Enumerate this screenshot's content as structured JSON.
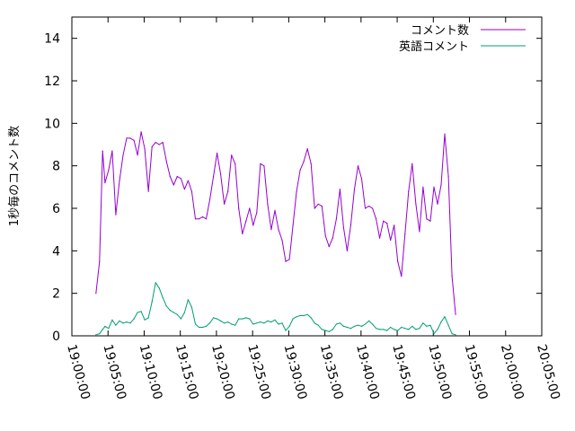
{
  "chart_data": {
    "type": "line",
    "title": "",
    "xlabel": "",
    "ylabel": "1秒毎のコメント数",
    "x_ticks": [
      "19:00:00",
      "19:05:00",
      "19:10:00",
      "19:15:00",
      "19:20:00",
      "19:25:00",
      "19:30:00",
      "19:35:00",
      "19:40:00",
      "19:45:00",
      "19:50:00",
      "19:55:00",
      "20:00:00",
      "20:05:00"
    ],
    "y_ticks": [
      "0",
      "2",
      "4",
      "6",
      "8",
      "10",
      "12",
      "14"
    ],
    "xlim": [
      "19:00:00",
      "20:05:00"
    ],
    "ylim": [
      0,
      15
    ],
    "grid": false,
    "legend_position": "top-right",
    "series": [
      {
        "name": "コメント数",
        "color": "#9400d3",
        "points": [
          [
            "19:03:20",
            2.0
          ],
          [
            "19:03:50",
            3.5
          ],
          [
            "19:04:15",
            8.7
          ],
          [
            "19:04:35",
            7.2
          ],
          [
            "19:05:05",
            7.8
          ],
          [
            "19:05:35",
            8.7
          ],
          [
            "19:06:05",
            5.7
          ],
          [
            "19:06:35",
            7.3
          ],
          [
            "19:07:05",
            8.5
          ],
          [
            "19:07:35",
            9.3
          ],
          [
            "19:08:05",
            9.3
          ],
          [
            "19:08:35",
            9.2
          ],
          [
            "19:09:05",
            8.5
          ],
          [
            "19:09:35",
            9.6
          ],
          [
            "19:10:05",
            8.8
          ],
          [
            "19:10:35",
            6.8
          ],
          [
            "19:11:05",
            8.9
          ],
          [
            "19:11:35",
            9.1
          ],
          [
            "19:12:05",
            9.0
          ],
          [
            "19:12:35",
            9.1
          ],
          [
            "19:13:05",
            8.2
          ],
          [
            "19:13:35",
            7.5
          ],
          [
            "19:14:05",
            7.1
          ],
          [
            "19:14:35",
            7.5
          ],
          [
            "19:15:05",
            7.4
          ],
          [
            "19:15:35",
            6.9
          ],
          [
            "19:16:05",
            7.3
          ],
          [
            "19:16:35",
            6.8
          ],
          [
            "19:17:05",
            5.5
          ],
          [
            "19:17:35",
            5.5
          ],
          [
            "19:18:05",
            5.6
          ],
          [
            "19:18:35",
            5.5
          ],
          [
            "19:19:05",
            6.4
          ],
          [
            "19:19:35",
            7.5
          ],
          [
            "19:20:05",
            8.6
          ],
          [
            "19:20:35",
            7.6
          ],
          [
            "19:21:05",
            6.2
          ],
          [
            "19:21:35",
            6.8
          ],
          [
            "19:22:05",
            8.5
          ],
          [
            "19:22:35",
            8.1
          ],
          [
            "19:23:05",
            6.0
          ],
          [
            "19:23:35",
            4.8
          ],
          [
            "19:24:05",
            5.4
          ],
          [
            "19:24:35",
            6.0
          ],
          [
            "19:25:05",
            5.2
          ],
          [
            "19:25:35",
            5.8
          ],
          [
            "19:26:05",
            8.1
          ],
          [
            "19:26:35",
            8.0
          ],
          [
            "19:27:05",
            6.2
          ],
          [
            "19:27:35",
            5.0
          ],
          [
            "19:28:05",
            5.9
          ],
          [
            "19:28:35",
            5.0
          ],
          [
            "19:29:05",
            4.5
          ],
          [
            "19:29:35",
            3.5
          ],
          [
            "19:30:05",
            3.6
          ],
          [
            "19:30:35",
            5.2
          ],
          [
            "19:31:05",
            6.8
          ],
          [
            "19:31:35",
            7.8
          ],
          [
            "19:32:05",
            8.2
          ],
          [
            "19:32:35",
            8.8
          ],
          [
            "19:33:05",
            8.1
          ],
          [
            "19:33:35",
            6.0
          ],
          [
            "19:34:05",
            6.2
          ],
          [
            "19:34:35",
            6.1
          ],
          [
            "19:35:05",
            4.7
          ],
          [
            "19:35:35",
            4.2
          ],
          [
            "19:36:05",
            4.6
          ],
          [
            "19:36:35",
            5.5
          ],
          [
            "19:37:05",
            6.9
          ],
          [
            "19:37:35",
            5.1
          ],
          [
            "19:38:05",
            4.0
          ],
          [
            "19:38:35",
            5.2
          ],
          [
            "19:39:05",
            6.9
          ],
          [
            "19:39:35",
            8.0
          ],
          [
            "19:40:05",
            7.4
          ],
          [
            "19:40:35",
            6.0
          ],
          [
            "19:41:05",
            6.1
          ],
          [
            "19:41:35",
            6.0
          ],
          [
            "19:42:05",
            5.5
          ],
          [
            "19:42:35",
            4.6
          ],
          [
            "19:43:05",
            5.4
          ],
          [
            "19:43:35",
            5.3
          ],
          [
            "19:44:05",
            4.5
          ],
          [
            "19:44:35",
            5.2
          ],
          [
            "19:45:05",
            3.5
          ],
          [
            "19:45:35",
            2.8
          ],
          [
            "19:46:05",
            4.8
          ],
          [
            "19:46:35",
            6.8
          ],
          [
            "19:47:05",
            8.1
          ],
          [
            "19:47:35",
            6.2
          ],
          [
            "19:48:05",
            4.9
          ],
          [
            "19:48:35",
            7.0
          ],
          [
            "19:49:05",
            5.5
          ],
          [
            "19:49:35",
            5.4
          ],
          [
            "19:50:05",
            7.0
          ],
          [
            "19:50:35",
            6.2
          ],
          [
            "19:51:05",
            7.1
          ],
          [
            "19:51:35",
            9.5
          ],
          [
            "19:52:05",
            7.5
          ],
          [
            "19:52:35",
            2.8
          ],
          [
            "19:53:05",
            1.0
          ]
        ]
      },
      {
        "name": "英語コメント",
        "color": "#009e73",
        "points": [
          [
            "19:03:20",
            0.05
          ],
          [
            "19:03:50",
            0.1
          ],
          [
            "19:04:15",
            0.3
          ],
          [
            "19:04:35",
            0.45
          ],
          [
            "19:05:05",
            0.35
          ],
          [
            "19:05:35",
            0.75
          ],
          [
            "19:06:05",
            0.5
          ],
          [
            "19:06:35",
            0.7
          ],
          [
            "19:07:05",
            0.6
          ],
          [
            "19:07:35",
            0.65
          ],
          [
            "19:08:05",
            0.6
          ],
          [
            "19:08:35",
            0.8
          ],
          [
            "19:09:05",
            1.1
          ],
          [
            "19:09:35",
            1.15
          ],
          [
            "19:10:05",
            0.75
          ],
          [
            "19:10:35",
            0.85
          ],
          [
            "19:11:05",
            1.6
          ],
          [
            "19:11:35",
            2.5
          ],
          [
            "19:12:05",
            2.25
          ],
          [
            "19:12:35",
            1.8
          ],
          [
            "19:13:05",
            1.4
          ],
          [
            "19:13:35",
            1.2
          ],
          [
            "19:14:05",
            1.1
          ],
          [
            "19:14:35",
            1.0
          ],
          [
            "19:15:05",
            0.8
          ],
          [
            "19:15:35",
            1.1
          ],
          [
            "19:16:05",
            1.7
          ],
          [
            "19:16:35",
            1.35
          ],
          [
            "19:17:05",
            0.55
          ],
          [
            "19:17:35",
            0.4
          ],
          [
            "19:18:05",
            0.4
          ],
          [
            "19:18:35",
            0.45
          ],
          [
            "19:19:05",
            0.6
          ],
          [
            "19:19:35",
            0.85
          ],
          [
            "19:20:05",
            0.8
          ],
          [
            "19:20:35",
            0.7
          ],
          [
            "19:21:05",
            0.6
          ],
          [
            "19:21:35",
            0.65
          ],
          [
            "19:22:05",
            0.55
          ],
          [
            "19:22:35",
            0.5
          ],
          [
            "19:23:05",
            0.8
          ],
          [
            "19:23:35",
            0.8
          ],
          [
            "19:24:05",
            0.85
          ],
          [
            "19:24:35",
            0.8
          ],
          [
            "19:25:05",
            0.55
          ],
          [
            "19:25:35",
            0.6
          ],
          [
            "19:26:05",
            0.65
          ],
          [
            "19:26:35",
            0.6
          ],
          [
            "19:27:05",
            0.7
          ],
          [
            "19:27:35",
            0.65
          ],
          [
            "19:28:05",
            0.75
          ],
          [
            "19:28:35",
            0.55
          ],
          [
            "19:29:05",
            0.6
          ],
          [
            "19:29:35",
            0.25
          ],
          [
            "19:30:05",
            0.45
          ],
          [
            "19:30:35",
            0.8
          ],
          [
            "19:31:05",
            0.9
          ],
          [
            "19:31:35",
            0.95
          ],
          [
            "19:32:05",
            0.95
          ],
          [
            "19:32:35",
            1.0
          ],
          [
            "19:33:05",
            0.85
          ],
          [
            "19:33:35",
            0.6
          ],
          [
            "19:34:05",
            0.5
          ],
          [
            "19:34:35",
            0.3
          ],
          [
            "19:35:05",
            0.25
          ],
          [
            "19:35:35",
            0.2
          ],
          [
            "19:36:05",
            0.3
          ],
          [
            "19:36:35",
            0.55
          ],
          [
            "19:37:05",
            0.6
          ],
          [
            "19:37:35",
            0.45
          ],
          [
            "19:38:05",
            0.4
          ],
          [
            "19:38:35",
            0.35
          ],
          [
            "19:39:05",
            0.45
          ],
          [
            "19:39:35",
            0.5
          ],
          [
            "19:40:05",
            0.45
          ],
          [
            "19:40:35",
            0.55
          ],
          [
            "19:41:05",
            0.7
          ],
          [
            "19:41:35",
            0.55
          ],
          [
            "19:42:05",
            0.35
          ],
          [
            "19:42:35",
            0.3
          ],
          [
            "19:43:05",
            0.3
          ],
          [
            "19:43:35",
            0.25
          ],
          [
            "19:44:05",
            0.4
          ],
          [
            "19:44:35",
            0.3
          ],
          [
            "19:45:05",
            0.25
          ],
          [
            "19:45:35",
            0.4
          ],
          [
            "19:46:05",
            0.35
          ],
          [
            "19:46:35",
            0.3
          ],
          [
            "19:47:05",
            0.45
          ],
          [
            "19:47:35",
            0.3
          ],
          [
            "19:48:05",
            0.35
          ],
          [
            "19:48:35",
            0.6
          ],
          [
            "19:49:05",
            0.45
          ],
          [
            "19:49:35",
            0.5
          ],
          [
            "19:50:05",
            0.1
          ],
          [
            "19:50:35",
            0.3
          ],
          [
            "19:51:05",
            0.65
          ],
          [
            "19:51:35",
            0.9
          ],
          [
            "19:52:05",
            0.5
          ],
          [
            "19:52:35",
            0.1
          ],
          [
            "19:53:05",
            0.05
          ]
        ]
      }
    ]
  }
}
